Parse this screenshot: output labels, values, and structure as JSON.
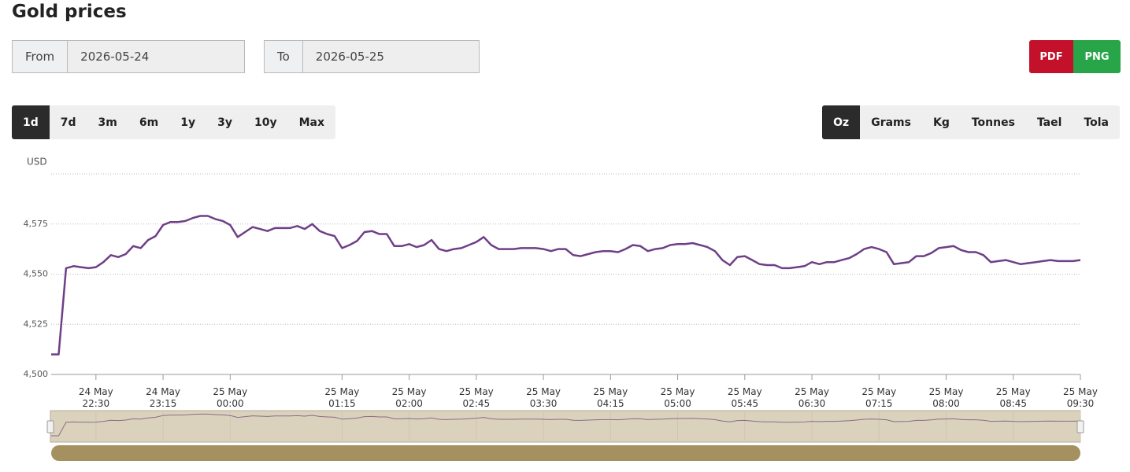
{
  "header": {
    "title": "Gold prices"
  },
  "date_range": {
    "from_label": "From",
    "from_value": "2026-05-24",
    "to_label": "To",
    "to_value": "2026-05-25"
  },
  "export": [
    "PDF",
    "PNG"
  ],
  "periods": {
    "options": [
      "1d",
      "7d",
      "3m",
      "6m",
      "1y",
      "3y",
      "10y",
      "Max"
    ],
    "selected": 0
  },
  "units": {
    "options": [
      "Oz",
      "Grams",
      "Kg",
      "Tonnes",
      "Tael",
      "Tola"
    ],
    "selected": 0
  },
  "chart_data": {
    "type": "line",
    "ylabel": "USD",
    "color": "#6e3f86",
    "grid": true,
    "ylim": [
      4500,
      4600
    ],
    "yticks": [
      {
        "value": 4500,
        "label": "4,500"
      },
      {
        "value": 4525,
        "label": "4,525"
      },
      {
        "value": 4550,
        "label": "4,550"
      },
      {
        "value": 4575,
        "label": "4,575"
      }
    ],
    "xlim": [
      "24 May 22:00",
      "25 May 09:30"
    ],
    "xticks": [
      "24 May 22:30",
      "24 May 23:15",
      "25 May 00:00",
      "25 May 01:15",
      "25 May 02:00",
      "25 May 02:45",
      "25 May 03:30",
      "25 May 04:15",
      "25 May 05:00",
      "25 May 05:45",
      "25 May 06:30",
      "25 May 07:15",
      "25 May 08:00",
      "25 May 08:45",
      "25 May 09:30"
    ],
    "x": [
      "24 May 22:00",
      "24 May 22:05",
      "24 May 22:10",
      "24 May 22:15",
      "24 May 22:20",
      "24 May 22:25",
      "24 May 22:30",
      "24 May 22:35",
      "24 May 22:40",
      "24 May 22:45",
      "24 May 22:50",
      "24 May 22:55",
      "24 May 23:00",
      "24 May 23:05",
      "24 May 23:10",
      "24 May 23:15",
      "24 May 23:20",
      "24 May 23:25",
      "24 May 23:30",
      "24 May 23:35",
      "24 May 23:40",
      "24 May 23:45",
      "24 May 23:50",
      "24 May 23:55",
      "25 May 00:00",
      "25 May 00:05",
      "25 May 00:10",
      "25 May 00:15",
      "25 May 00:20",
      "25 May 00:25",
      "25 May 00:30",
      "25 May 00:35",
      "25 May 00:40",
      "25 May 00:45",
      "25 May 00:50",
      "25 May 00:55",
      "25 May 01:00",
      "25 May 01:05",
      "25 May 01:10",
      "25 May 01:15",
      "25 May 01:20",
      "25 May 01:25",
      "25 May 01:30",
      "25 May 01:35",
      "25 May 01:40",
      "25 May 01:45",
      "25 May 01:50",
      "25 May 01:55",
      "25 May 02:00",
      "25 May 02:05",
      "25 May 02:10",
      "25 May 02:15",
      "25 May 02:20",
      "25 May 02:25",
      "25 May 02:30",
      "25 May 02:35",
      "25 May 02:40",
      "25 May 02:45",
      "25 May 02:50",
      "25 May 02:55",
      "25 May 03:00",
      "25 May 03:05",
      "25 May 03:10",
      "25 May 03:15",
      "25 May 03:20",
      "25 May 03:25",
      "25 May 03:30",
      "25 May 03:35",
      "25 May 03:40",
      "25 May 03:45",
      "25 May 03:50",
      "25 May 03:55",
      "25 May 04:00",
      "25 May 04:05",
      "25 May 04:10",
      "25 May 04:15",
      "25 May 04:20",
      "25 May 04:25",
      "25 May 04:30",
      "25 May 04:35",
      "25 May 04:40",
      "25 May 04:45",
      "25 May 04:50",
      "25 May 04:55",
      "25 May 05:00",
      "25 May 05:05",
      "25 May 05:10",
      "25 May 05:15",
      "25 May 05:20",
      "25 May 05:25",
      "25 May 05:30",
      "25 May 05:35",
      "25 May 05:40",
      "25 May 05:45",
      "25 May 05:50",
      "25 May 05:55",
      "25 May 06:00",
      "25 May 06:05",
      "25 May 06:10",
      "25 May 06:15",
      "25 May 06:20",
      "25 May 06:25",
      "25 May 06:30",
      "25 May 06:35",
      "25 May 06:40",
      "25 May 06:45",
      "25 May 06:50",
      "25 May 06:55",
      "25 May 07:00",
      "25 May 07:05",
      "25 May 07:10",
      "25 May 07:15",
      "25 May 07:20",
      "25 May 07:25",
      "25 May 07:30",
      "25 May 07:35",
      "25 May 07:40",
      "25 May 07:45",
      "25 May 07:50",
      "25 May 07:55",
      "25 May 08:00",
      "25 May 08:05",
      "25 May 08:10",
      "25 May 08:15",
      "25 May 08:20",
      "25 May 08:25",
      "25 May 08:30",
      "25 May 08:35",
      "25 May 08:40",
      "25 May 08:45",
      "25 May 08:50",
      "25 May 08:55",
      "25 May 09:00",
      "25 May 09:05",
      "25 May 09:10",
      "25 May 09:15",
      "25 May 09:20",
      "25 May 09:25",
      "25 May 09:30"
    ],
    "values": [
      4510,
      4510,
      4553,
      4554,
      4553.5,
      4553,
      4553.5,
      4556,
      4559.5,
      4558.5,
      4560,
      4564,
      4563,
      4567,
      4569,
      4574.5,
      4576,
      4576,
      4576.5,
      4578,
      4579,
      4579,
      4577.5,
      4576.5,
      4574.5,
      4568.5,
      4571,
      4573.5,
      4572.5,
      4571.5,
      4573,
      4573,
      4573,
      4574,
      4572.5,
      4575,
      4571.5,
      4570,
      4569,
      4563,
      4564.5,
      4566.5,
      4571,
      4571.5,
      4570,
      4570,
      4564,
      4564,
      4565,
      4563.5,
      4564.5,
      4567,
      4562.5,
      4561.5,
      4562.5,
      4563,
      4564.5,
      4566,
      4568.5,
      4564.5,
      4562.5,
      4562.5,
      4562.5,
      4563,
      4563,
      4563,
      4562.5,
      4561.5,
      4562.5,
      4562.5,
      4559.5,
      4559,
      4560,
      4561,
      4561.5,
      4561.5,
      4561,
      4562.5,
      4564.5,
      4564,
      4561.5,
      4562.5,
      4563,
      4564.5,
      4565,
      4565,
      4565.5,
      4564.5,
      4563.5,
      4561.5,
      4557,
      4554.5,
      4558.5,
      4559,
      4557,
      4555,
      4554.5,
      4554.5,
      4553,
      4553,
      4553.5,
      4554,
      4556,
      4555,
      4556,
      4556,
      4557,
      4558,
      4560,
      4562.5,
      4563.5,
      4562.5,
      4561,
      4555,
      4555.5,
      4556,
      4559,
      4559,
      4560.5,
      4563,
      4563.5,
      4564,
      4562,
      4561,
      4561,
      4559.5,
      4556,
      4556.5,
      4557,
      4556,
      4555,
      4555.5,
      4556,
      4556.5,
      4557,
      4556.5,
      4556.5,
      4556.5,
      4557
    ]
  }
}
